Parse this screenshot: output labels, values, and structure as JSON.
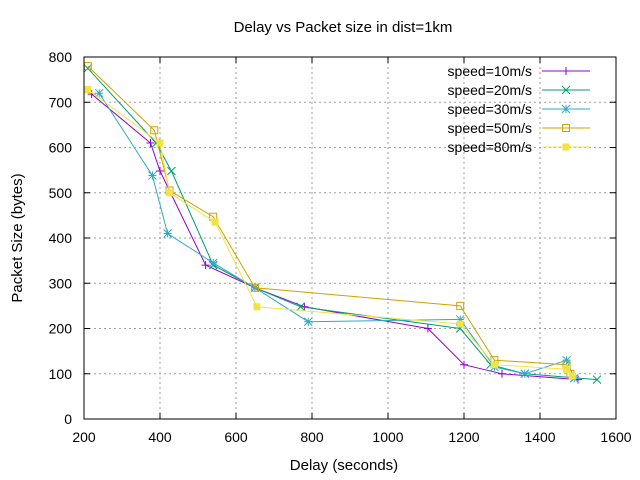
{
  "chart_data": {
    "type": "line",
    "title": "Delay vs Packet size in dist=1km",
    "xlabel": "Delay (seconds)",
    "ylabel": "Packet Size (bytes)",
    "xlim": [
      200,
      1600
    ],
    "ylim": [
      0,
      800
    ],
    "xticks": [
      200,
      400,
      600,
      800,
      1000,
      1200,
      1400,
      1600
    ],
    "yticks": [
      0,
      100,
      200,
      300,
      400,
      500,
      600,
      700,
      800
    ],
    "grid": true,
    "legend_position": "top-right",
    "series": [
      {
        "name": "speed=10m/s",
        "color": "#9400d3",
        "marker": "plus",
        "points": [
          [
            220,
            718
          ],
          [
            375,
            610
          ],
          [
            400,
            548
          ],
          [
            520,
            340
          ],
          [
            650,
            290
          ],
          [
            780,
            248
          ],
          [
            1105,
            200
          ],
          [
            1200,
            120
          ],
          [
            1300,
            100
          ],
          [
            1500,
            87
          ]
        ]
      },
      {
        "name": "speed=20m/s",
        "color": "#009e73",
        "marker": "x",
        "points": [
          [
            210,
            775
          ],
          [
            390,
            610
          ],
          [
            430,
            548
          ],
          [
            540,
            340
          ],
          [
            650,
            290
          ],
          [
            770,
            248
          ],
          [
            1190,
            200
          ],
          [
            1270,
            120
          ],
          [
            1360,
            100
          ],
          [
            1550,
            87
          ]
        ]
      },
      {
        "name": "speed=30m/s",
        "color": "#2eaac6",
        "marker": "star",
        "points": [
          [
            240,
            720
          ],
          [
            380,
            538
          ],
          [
            420,
            410
          ],
          [
            540,
            345
          ],
          [
            650,
            290
          ],
          [
            790,
            215
          ],
          [
            1190,
            220
          ],
          [
            1280,
            115
          ],
          [
            1360,
            100
          ],
          [
            1470,
            130
          ],
          [
            1490,
            90
          ]
        ]
      },
      {
        "name": "speed=50m/s",
        "color": "#d2a000",
        "marker": "square-open",
        "points": [
          [
            210,
            780
          ],
          [
            385,
            638
          ],
          [
            425,
            505
          ],
          [
            540,
            447
          ],
          [
            650,
            290
          ],
          [
            1190,
            250
          ],
          [
            1280,
            130
          ],
          [
            1470,
            120
          ],
          [
            1480,
            100
          ]
        ]
      },
      {
        "name": "speed=80m/s",
        "color": "#f0e442",
        "marker": "square-filled",
        "points": [
          [
            210,
            728
          ],
          [
            400,
            610
          ],
          [
            425,
            500
          ],
          [
            545,
            435
          ],
          [
            655,
            248
          ],
          [
            1190,
            210
          ],
          [
            1280,
            120
          ],
          [
            1470,
            110
          ],
          [
            1485,
            95
          ]
        ]
      }
    ]
  }
}
